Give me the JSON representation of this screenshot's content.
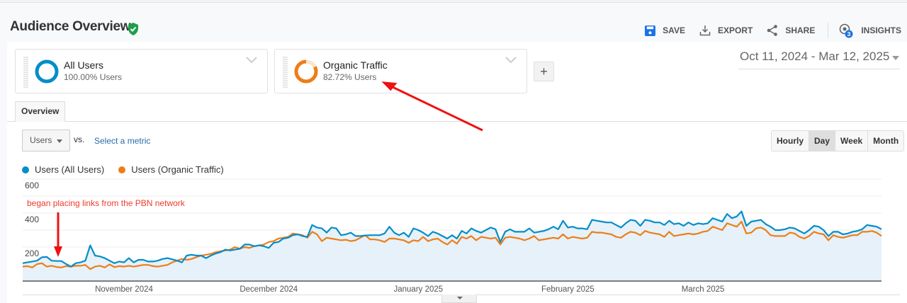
{
  "header": {
    "title": "Audience Overview",
    "verified_icon": "shield-check-icon",
    "toolbar": [
      {
        "label": "SAVE",
        "icon": "save-icon"
      },
      {
        "label": "EXPORT",
        "icon": "download-icon"
      },
      {
        "label": "SHARE",
        "icon": "share-icon"
      },
      {
        "label": "INSIGHTS",
        "icon": "insights-icon",
        "badge": "3"
      }
    ]
  },
  "segments": [
    {
      "name": "All Users",
      "pct": "100.00% Users",
      "color": "#058dc7",
      "fill": 1.0
    },
    {
      "name": "Organic Traffic",
      "pct": "82.72% Users",
      "color": "#ed7e17",
      "fill": 0.8272
    }
  ],
  "add_segment_label": "+",
  "date_range": "Oct 11, 2024 - Mar 12, 2025",
  "tabs": [
    {
      "label": "Overview",
      "active": true
    }
  ],
  "metric": {
    "selected": "Users",
    "vs_label": "vs.",
    "select_label": "Select a metric"
  },
  "granularity": [
    {
      "label": "Hourly",
      "active": false
    },
    {
      "label": "Day",
      "active": true
    },
    {
      "label": "Week",
      "active": false
    },
    {
      "label": "Month",
      "active": false
    }
  ],
  "legend": [
    {
      "label": "Users (All Users)",
      "color": "#058dc7"
    },
    {
      "label": "Users (Organic Traffic)",
      "color": "#ed7e17"
    }
  ],
  "annotation": {
    "text": "began placing links from the PBN network",
    "color": "#f0392b"
  },
  "chart_data": {
    "type": "line",
    "title": "",
    "xlabel": "",
    "ylabel": "Users",
    "ylim": [
      0,
      600
    ],
    "yticks": [
      200,
      400,
      600
    ],
    "grid": true,
    "legend_position": "top-left",
    "x_start": "2024-10-11",
    "x_end": "2025-03-12",
    "x_tick_labels": [
      {
        "label": "November 2024",
        "day_index": 21
      },
      {
        "label": "December 2024",
        "day_index": 51
      },
      {
        "label": "January 2025",
        "day_index": 82
      },
      {
        "label": "February 2025",
        "day_index": 113
      },
      {
        "label": "March 2025",
        "day_index": 141
      }
    ],
    "series": [
      {
        "name": "Users (All Users)",
        "color": "#058dc7",
        "values": [
          105,
          110,
          115,
          120,
          140,
          142,
          120,
          118,
          118,
          100,
          85,
          105,
          110,
          120,
          210,
          150,
          145,
          135,
          120,
          105,
          115,
          110,
          135,
          110,
          125,
          125,
          115,
          115,
          120,
          130,
          135,
          128,
          120,
          110,
          150,
          155,
          150,
          150,
          135,
          150,
          162,
          170,
          185,
          180,
          185,
          190,
          215,
          215,
          205,
          210,
          205,
          195,
          225,
          230,
          250,
          255,
          270,
          275,
          265,
          260,
          330,
          315,
          310,
          285,
          315,
          310,
          270,
          275,
          285,
          265,
          265,
          268,
          270,
          270,
          270,
          280,
          320,
          285,
          270,
          285,
          260,
          310,
          300,
          285,
          265,
          290,
          280,
          265,
          250,
          270,
          250,
          295,
          280,
          310,
          295,
          285,
          300,
          315,
          305,
          230,
          290,
          305,
          290,
          290,
          290,
          310,
          285,
          290,
          295,
          305,
          320,
          305,
          355,
          315,
          320,
          310,
          310,
          305,
          360,
          355,
          350,
          345,
          345,
          330,
          315,
          340,
          360,
          355,
          325,
          360,
          355,
          345,
          345,
          330,
          355,
          335,
          340,
          325,
          345,
          330,
          340,
          335,
          340,
          370,
          360,
          350,
          395,
          370,
          380,
          410,
          325,
          350,
          355,
          360,
          335,
          320,
          300,
          300,
          305,
          315,
          310,
          295,
          280,
          300,
          325,
          320,
          300,
          265,
          290,
          290,
          275,
          280,
          290,
          295,
          305,
          330,
          325,
          320,
          305
        ]
      },
      {
        "name": "Users (Organic Traffic)",
        "color": "#ed7e17",
        "values": [
          85,
          88,
          80,
          100,
          105,
          85,
          90,
          83,
          80,
          88,
          85,
          90,
          90,
          95,
          70,
          85,
          90,
          80,
          98,
          82,
          88,
          85,
          90,
          85,
          90,
          95,
          95,
          88,
          85,
          90,
          95,
          110,
          120,
          130,
          125,
          130,
          140,
          150,
          155,
          160,
          170,
          175,
          180,
          185,
          200,
          190,
          200,
          195,
          205,
          210,
          215,
          230,
          235,
          250,
          255,
          260,
          280,
          275,
          270,
          255,
          290,
          275,
          235,
          255,
          250,
          245,
          240,
          243,
          235,
          240,
          255,
          270,
          245,
          245,
          240,
          230,
          250,
          250,
          245,
          240,
          225,
          240,
          235,
          260,
          235,
          245,
          250,
          230,
          215,
          240,
          220,
          260,
          250,
          265,
          240,
          260,
          255,
          250,
          255,
          215,
          255,
          260,
          255,
          250,
          240,
          250,
          265,
          240,
          245,
          250,
          255,
          250,
          275,
          250,
          260,
          255,
          250,
          255,
          290,
          285,
          285,
          280,
          275,
          260,
          255,
          275,
          290,
          285,
          270,
          295,
          285,
          280,
          275,
          260,
          290,
          265,
          270,
          275,
          280,
          275,
          280,
          290,
          295,
          320,
          310,
          300,
          340,
          330,
          320,
          350,
          280,
          285,
          310,
          315,
          300,
          270,
          265,
          265,
          265,
          285,
          280,
          260,
          250,
          265,
          290,
          280,
          275,
          240,
          270,
          260,
          255,
          262,
          270,
          270,
          290,
          290,
          295,
          285,
          265
        ]
      }
    ]
  }
}
